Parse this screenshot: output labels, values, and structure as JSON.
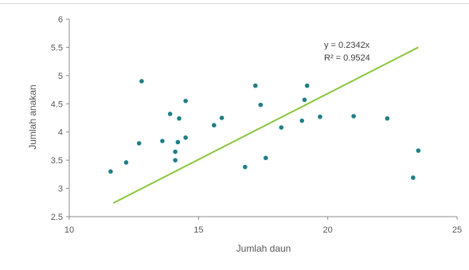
{
  "chart_data": {
    "type": "scatter",
    "title": "",
    "xlabel": "Jumlah daun",
    "ylabel": "Jumlah anakan",
    "xlim": [
      10,
      25
    ],
    "ylim": [
      2.5,
      6
    ],
    "x_ticks": [
      "10",
      "15",
      "20",
      "25"
    ],
    "y_ticks": [
      "2.5",
      "3",
      "3.5",
      "4",
      "4.5",
      "5",
      "5.5",
      "6"
    ],
    "grid": false,
    "legend": false,
    "point_color": "#1f7f86",
    "trend_color": "#8cc63f",
    "points": [
      {
        "x": 11.6,
        "y": 3.3
      },
      {
        "x": 12.2,
        "y": 3.46
      },
      {
        "x": 12.7,
        "y": 3.8
      },
      {
        "x": 12.8,
        "y": 4.9
      },
      {
        "x": 13.6,
        "y": 3.84
      },
      {
        "x": 13.9,
        "y": 4.32
      },
      {
        "x": 14.1,
        "y": 3.5
      },
      {
        "x": 14.1,
        "y": 3.65
      },
      {
        "x": 14.2,
        "y": 3.82
      },
      {
        "x": 14.25,
        "y": 4.24
      },
      {
        "x": 14.5,
        "y": 3.9
      },
      {
        "x": 14.5,
        "y": 4.55
      },
      {
        "x": 15.6,
        "y": 4.12
      },
      {
        "x": 15.9,
        "y": 4.25
      },
      {
        "x": 16.8,
        "y": 3.38
      },
      {
        "x": 17.2,
        "y": 4.82
      },
      {
        "x": 17.4,
        "y": 4.48
      },
      {
        "x": 17.6,
        "y": 3.54
      },
      {
        "x": 18.2,
        "y": 4.08
      },
      {
        "x": 19.0,
        "y": 4.2
      },
      {
        "x": 19.1,
        "y": 4.57
      },
      {
        "x": 19.2,
        "y": 4.82
      },
      {
        "x": 19.7,
        "y": 4.27
      },
      {
        "x": 21.0,
        "y": 4.28
      },
      {
        "x": 22.3,
        "y": 4.24
      },
      {
        "x": 23.3,
        "y": 3.19
      },
      {
        "x": 23.5,
        "y": 3.67
      }
    ],
    "trendline": {
      "x": [
        11.7,
        23.5
      ],
      "y": [
        2.74,
        5.5
      ]
    },
    "annotations": {
      "equation": "y = 0.2342x",
      "r_squared": "R² = 0.9524"
    }
  }
}
